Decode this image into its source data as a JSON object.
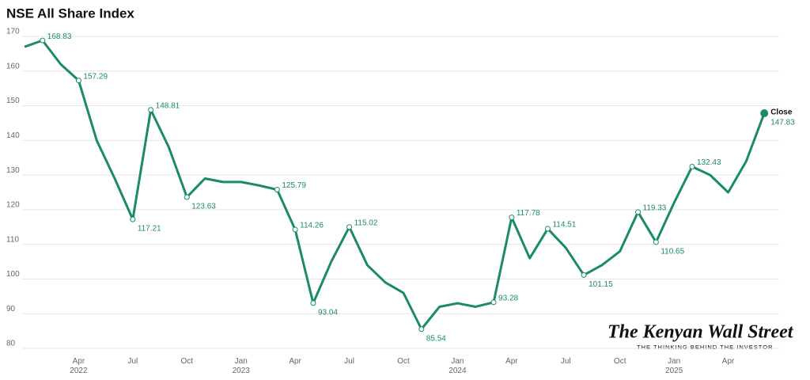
{
  "chart_data": {
    "type": "line",
    "title": "NSE All Share Index",
    "x": [
      "2022-01",
      "2022-02",
      "2022-03",
      "2022-04",
      "2022-05",
      "2022-06",
      "2022-07",
      "2022-08",
      "2022-09",
      "2022-10",
      "2022-11",
      "2022-12",
      "2023-01",
      "2023-02",
      "2023-03",
      "2023-04",
      "2023-05",
      "2023-06",
      "2023-07",
      "2023-08",
      "2023-09",
      "2023-10",
      "2023-11",
      "2023-12",
      "2024-01",
      "2024-02",
      "2024-03",
      "2024-04",
      "2024-05",
      "2024-06",
      "2024-07",
      "2024-08",
      "2024-09",
      "2024-10",
      "2024-11",
      "2024-12",
      "2025-01",
      "2025-02",
      "2025-03",
      "2025-04",
      "2025-05",
      "2025-06"
    ],
    "series": [
      {
        "name": "Close",
        "color": "#1b8a6b",
        "values": [
          167,
          168.83,
          162,
          157.29,
          140,
          129,
          117.21,
          148.81,
          138,
          123.63,
          129,
          128,
          128,
          127,
          125.79,
          114.26,
          93.04,
          105,
          115.02,
          104,
          99,
          96,
          85.54,
          92,
          93,
          92,
          93.28,
          117.78,
          106,
          114.51,
          109,
          101.15,
          104,
          108,
          119.33,
          110.65,
          122,
          132.43,
          130,
          125,
          134,
          147.83
        ]
      }
    ],
    "annotated": [
      1,
      3,
      6,
      7,
      9,
      14,
      15,
      16,
      18,
      22,
      26,
      27,
      29,
      31,
      34,
      35,
      37,
      41
    ],
    "xlim": [
      "2022-01",
      "2025-07"
    ],
    "xticks": [
      {
        "value": "2022-04",
        "label": "Apr 2022"
      },
      {
        "value": "2022-07",
        "label": "Jul"
      },
      {
        "value": "2022-10",
        "label": "Oct"
      },
      {
        "value": "2023-01",
        "label": "Jan 2023"
      },
      {
        "value": "2023-04",
        "label": "Apr"
      },
      {
        "value": "2023-07",
        "label": "Jul"
      },
      {
        "value": "2023-10",
        "label": "Oct"
      },
      {
        "value": "2024-01",
        "label": "Jan 2024"
      },
      {
        "value": "2024-04",
        "label": "Apr"
      },
      {
        "value": "2024-07",
        "label": "Jul"
      },
      {
        "value": "2024-10",
        "label": "Oct"
      },
      {
        "value": "2025-01",
        "label": "Jan 2025"
      },
      {
        "value": "2025-04",
        "label": "Apr"
      }
    ],
    "ylim": [
      80,
      170
    ],
    "yticks": [
      80,
      90,
      100,
      110,
      120,
      130,
      140,
      150,
      160,
      170
    ],
    "grid": true,
    "watermark": {
      "name": "The Kenyan Wall Street",
      "tagline": "THE THINKING BEHIND THE INVESTOR"
    }
  }
}
